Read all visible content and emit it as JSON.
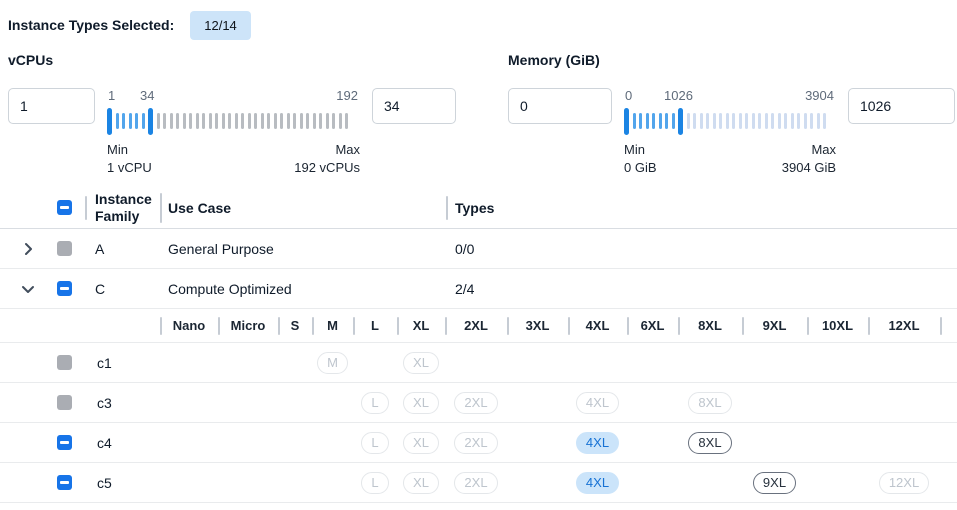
{
  "header": {
    "label": "Instance Types Selected:",
    "badge": "12/14"
  },
  "filters": [
    {
      "title": "vCPUs",
      "min_input": "1",
      "max_input": "34",
      "scale": {
        "low": "1",
        "mid": "34",
        "high": "192"
      },
      "min_label": "Min",
      "min_value": "1 vCPU",
      "max_label": "Max",
      "max_value": "192 vCPUs",
      "slider": {
        "selected_ticks": 5,
        "rest_ticks": 30,
        "rest_style": "gray"
      }
    },
    {
      "title": "Memory (GiB)",
      "min_input": "0",
      "max_input": "1026",
      "scale": {
        "low": "0",
        "mid": "1026",
        "high": "3904"
      },
      "min_label": "Min",
      "min_value": "0 GiB",
      "max_label": "Max",
      "max_value": "3904 GiB",
      "slider": {
        "selected_ticks": 7,
        "rest_ticks": 22,
        "rest_style": "lblue"
      }
    }
  ],
  "table": {
    "columns": {
      "family": "Instance Family",
      "use_case": "Use Case",
      "types": "Types"
    },
    "header_checkbox": "indeterminate",
    "family_rows": [
      {
        "name": "A",
        "use_case": "General Purpose",
        "types": "0/0",
        "expanded": false,
        "checkbox": "disabled"
      },
      {
        "name": "C",
        "use_case": "Compute Optimized",
        "types": "2/4",
        "expanded": true,
        "checkbox": "indeterminate"
      }
    ],
    "sizes": [
      "Nano",
      "Micro",
      "S",
      "M",
      "L",
      "XL",
      "2XL",
      "3XL",
      "4XL",
      "6XL",
      "8XL",
      "9XL",
      "10XL",
      "12XL"
    ],
    "instance_rows": [
      {
        "name": "c1",
        "checkbox": "disabled",
        "badges": {
          "M": "disabled",
          "XL": "disabled"
        }
      },
      {
        "name": "c3",
        "checkbox": "disabled",
        "badges": {
          "L": "disabled",
          "XL": "disabled",
          "2XL": "disabled",
          "4XL": "disabled",
          "8XL": "disabled"
        }
      },
      {
        "name": "c4",
        "checkbox": "indeterminate",
        "badges": {
          "L": "disabled",
          "XL": "disabled",
          "2XL": "disabled",
          "4XL": "selected",
          "8XL": "normal"
        }
      },
      {
        "name": "c5",
        "checkbox": "indeterminate",
        "badges": {
          "L": "disabled",
          "XL": "disabled",
          "2XL": "disabled",
          "4XL": "selected",
          "9XL": "normal",
          "12XL": "disabled"
        }
      }
    ]
  },
  "colors": {
    "accent_blue": "#1774e8",
    "slider_handle": "#1b84e3",
    "slider_tick_selected": "#52a5ec",
    "slider_tick_gray": "#b8bcc1",
    "slider_tick_light": "#cfdcf0",
    "badge_selected_bg": "#cbe4fa",
    "badge_selected_text": "#1671d4",
    "count_badge_bg": "#cde4f9",
    "disabled_gray": "#aaadb3"
  }
}
